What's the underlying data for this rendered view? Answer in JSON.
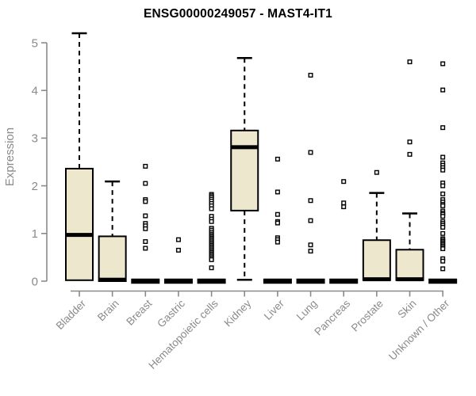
{
  "colors": {
    "box_fill": "#EDE7CE",
    "box_border": "#000000",
    "median": "#000000",
    "whisker": "#000000",
    "outlier_fill": "#ffffff",
    "axis": "#8A8A8A",
    "tick_text": "#8A8A8A",
    "title_text": "#000000",
    "background": "#FFFFFF"
  },
  "chart_data": {
    "type": "boxplot",
    "title": "ENSG00000249057 - MAST4-IT1",
    "ylabel": "Expression",
    "xlabel": "",
    "ylim": [
      0,
      5
    ],
    "yticks": [
      0,
      1,
      2,
      3,
      4,
      5
    ],
    "grid": false,
    "legend": "none",
    "categories": [
      "Bladder",
      "Brain",
      "Breast",
      "Gastric",
      "Hematopoietic cells",
      "Kidney",
      "Liver",
      "Lung",
      "Pancreas",
      "Prostate",
      "Skin",
      "Unknown / Other"
    ],
    "series": [
      {
        "category": "Bladder",
        "low": 0.02,
        "q1": 0.02,
        "median": 0.97,
        "q3": 2.36,
        "high": 5.2,
        "outliers": []
      },
      {
        "category": "Brain",
        "low": 0.0,
        "q1": 0.0,
        "median": 0.03,
        "q3": 0.94,
        "high": 2.09,
        "outliers": []
      },
      {
        "category": "Breast",
        "low": 0,
        "q1": 0,
        "median": 0,
        "q3": 0,
        "high": 0,
        "outliers": [
          2.41,
          2.05,
          1.71,
          1.67,
          1.37,
          1.21,
          1.16,
          1.1,
          0.83,
          0.69
        ]
      },
      {
        "category": "Gastric",
        "low": 0,
        "q1": 0,
        "median": 0,
        "q3": 0,
        "high": 0,
        "outliers": [
          0.87,
          0.65
        ]
      },
      {
        "category": "Hematopoietic cells",
        "low": 0,
        "q1": 0,
        "median": 0,
        "q3": 0,
        "high": 0,
        "outliers": [
          1.82,
          1.79,
          1.76,
          1.72,
          1.68,
          1.63,
          1.58,
          1.52,
          1.36,
          1.3,
          1.25,
          1.11,
          1.07,
          1.03,
          0.99,
          0.96,
          0.93,
          0.9,
          0.87,
          0.84,
          0.81,
          0.78,
          0.75,
          0.72,
          0.69,
          0.66,
          0.63,
          0.6,
          0.57,
          0.54,
          0.51,
          0.48,
          0.45,
          0.28
        ]
      },
      {
        "category": "Kidney",
        "low": 0.03,
        "q1": 1.48,
        "median": 2.81,
        "q3": 3.16,
        "high": 4.68,
        "outliers": []
      },
      {
        "category": "Liver",
        "low": 0,
        "q1": 0,
        "median": 0,
        "q3": 0,
        "high": 0,
        "outliers": [
          2.56,
          1.87,
          1.4,
          1.25,
          1.22,
          0.91,
          0.87,
          0.82
        ]
      },
      {
        "category": "Lung",
        "low": 0,
        "q1": 0,
        "median": 0,
        "q3": 0,
        "high": 0,
        "outliers": [
          4.32,
          2.7,
          1.69,
          1.27,
          0.76,
          0.63
        ]
      },
      {
        "category": "Pancreas",
        "low": 0,
        "q1": 0,
        "median": 0,
        "q3": 0,
        "high": 0,
        "outliers": [
          2.09,
          1.64,
          1.56
        ]
      },
      {
        "category": "Prostate",
        "low": 0.02,
        "q1": 0.02,
        "median": 0.04,
        "q3": 0.86,
        "high": 1.85,
        "outliers": [
          2.28
        ]
      },
      {
        "category": "Skin",
        "low": 0.02,
        "q1": 0.02,
        "median": 0.04,
        "q3": 0.66,
        "high": 1.42,
        "outliers": [
          4.6,
          2.92,
          2.66
        ]
      },
      {
        "category": "Unknown / Other",
        "low": 0,
        "q1": 0,
        "median": 0,
        "q3": 0,
        "high": 0,
        "outliers": [
          4.56,
          4.01,
          3.22,
          2.6,
          2.48,
          2.43,
          2.38,
          2.33,
          2.06,
          2.0,
          1.83,
          1.71,
          1.66,
          1.61,
          1.58,
          1.47,
          1.43,
          1.4,
          1.36,
          1.25,
          1.21,
          1.17,
          1.13,
          1.0,
          0.89,
          0.86,
          0.83,
          0.8,
          0.77,
          0.74,
          0.71,
          0.68,
          0.47,
          0.42,
          0.26
        ]
      }
    ]
  }
}
